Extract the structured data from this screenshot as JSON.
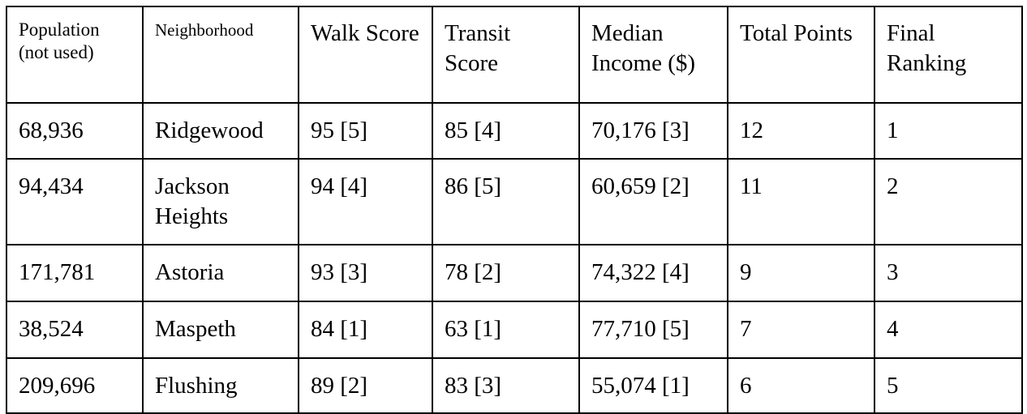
{
  "table": {
    "headers": [
      "Population (not used)",
      "Neighborhood",
      "Walk Score",
      "Transit Score",
      "Median Income ($)",
      "Total Points",
      "Final Ranking"
    ],
    "rows": [
      [
        "68,936",
        "Ridgewood",
        "95 [5]",
        "85 [4]",
        "70,176 [3]",
        "12",
        "1"
      ],
      [
        "94,434",
        "Jackson Heights",
        "94 [4]",
        "86 [5]",
        "60,659 [2]",
        "11",
        "2"
      ],
      [
        "171,781",
        "Astoria",
        "93 [3]",
        "78 [2]",
        "74,322 [4]",
        "9",
        "3"
      ],
      [
        "38,524",
        "Maspeth",
        "84 [1]",
        "63 [1]",
        "77,710 [5]",
        "7",
        "4"
      ],
      [
        "209,696",
        "Flushing",
        "89 [2]",
        "83 [3]",
        "55,074 [1]",
        "6",
        "5"
      ]
    ]
  }
}
